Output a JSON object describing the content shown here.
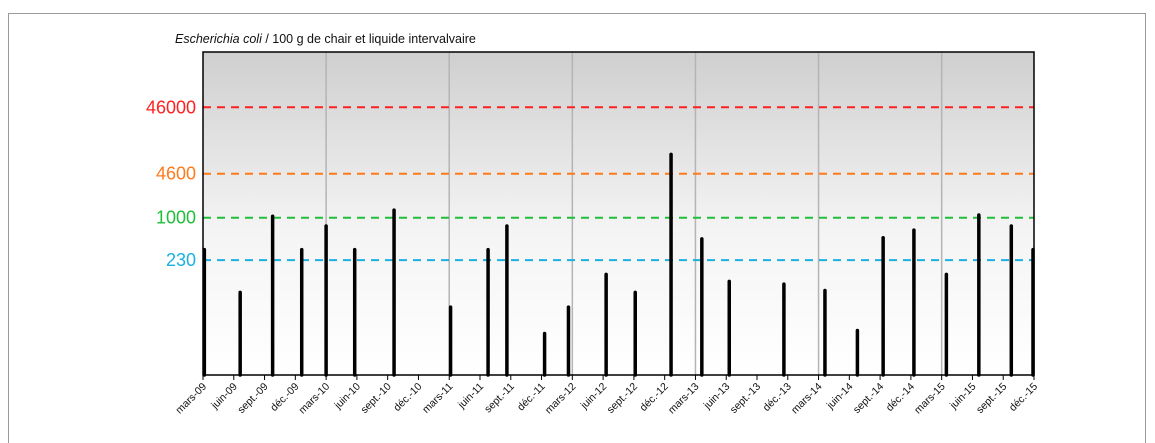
{
  "chart_data": {
    "type": "bar",
    "title_italic": "Escherichia coli",
    "title_rest": " / 100 g de chair et liquide intervalvaire",
    "y_scale": "log",
    "thresholds": [
      {
        "value": 46000,
        "label": "46000",
        "color": "#ff2020"
      },
      {
        "value": 4600,
        "label": "4600",
        "color": "#ff7a1a"
      },
      {
        "value": 1000,
        "label": "1000",
        "color": "#1fbf3a"
      },
      {
        "value": 230,
        "label": "230",
        "color": "#1ab0e0"
      }
    ],
    "x_tick_labels": [
      "mars-09",
      "juin-09",
      "sept.-09",
      "déc.-09",
      "mars-10",
      "juin-10",
      "sept.-10",
      "déc.-10",
      "mars-11",
      "juin-11",
      "sept.-11",
      "déc.-11",
      "mars-12",
      "juin-12",
      "sept.-12",
      "déc.-12",
      "mars-13",
      "juin-13",
      "sept.-13",
      "déc.-13",
      "mars-14",
      "juin-14",
      "sept.-14",
      "déc.-14",
      "mars-15",
      "juin-15",
      "sept.-15",
      "déc.-15"
    ],
    "x_range": [
      "2009-03",
      "2015-12"
    ],
    "gridlines": "vertical at year boundaries",
    "bars": [
      {
        "date": "2009-03-05",
        "value": 330
      },
      {
        "date": "2009-06-20",
        "value": 75
      },
      {
        "date": "2009-09-25",
        "value": 1050
      },
      {
        "date": "2009-12-20",
        "value": 330
      },
      {
        "date": "2010-03-01",
        "value": 750
      },
      {
        "date": "2010-05-25",
        "value": 330
      },
      {
        "date": "2010-09-20",
        "value": 1300
      },
      {
        "date": "2011-03-05",
        "value": 45
      },
      {
        "date": "2011-06-25",
        "value": 330
      },
      {
        "date": "2011-08-20",
        "value": 750
      },
      {
        "date": "2011-12-10",
        "value": 18
      },
      {
        "date": "2012-02-20",
        "value": 45
      },
      {
        "date": "2012-06-10",
        "value": 140
      },
      {
        "date": "2012-09-05",
        "value": 75
      },
      {
        "date": "2012-12-20",
        "value": 9000
      },
      {
        "date": "2013-03-20",
        "value": 480
      },
      {
        "date": "2013-06-10",
        "value": 110
      },
      {
        "date": "2013-11-20",
        "value": 100
      },
      {
        "date": "2014-03-20",
        "value": 80
      },
      {
        "date": "2014-06-25",
        "value": 20
      },
      {
        "date": "2014-09-10",
        "value": 500
      },
      {
        "date": "2014-12-10",
        "value": 650
      },
      {
        "date": "2015-03-15",
        "value": 140
      },
      {
        "date": "2015-06-20",
        "value": 1100
      },
      {
        "date": "2015-09-25",
        "value": 750
      },
      {
        "date": "2015-12-15",
        "value": 330
      }
    ]
  }
}
